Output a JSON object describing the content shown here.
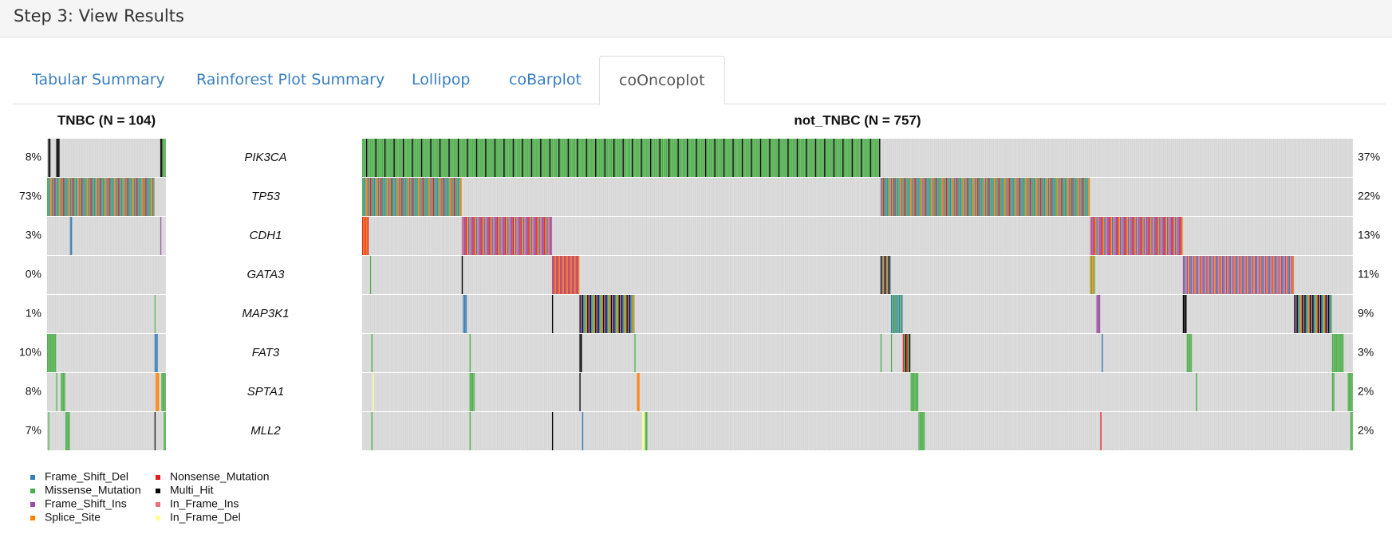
{
  "header": {
    "title": "Step 3: View Results"
  },
  "tabs": [
    {
      "label": "Tabular Summary",
      "active": false
    },
    {
      "label": "Rainforest Plot Summary",
      "active": false
    },
    {
      "label": "Lollipop",
      "active": false
    },
    {
      "label": "coBarplot",
      "active": false
    },
    {
      "label": "coOncoplot",
      "active": true
    }
  ],
  "oncoplot": {
    "genes": [
      "PIK3CA",
      "TP53",
      "CDH1",
      "GATA3",
      "MAP3K1",
      "FAT3",
      "SPTA1",
      "MLL2"
    ],
    "panels": [
      {
        "title": "TNBC (N = 104)",
        "samples": 104,
        "percent_labels": [
          "8%",
          "73%",
          "3%",
          "0%",
          "1%",
          "10%",
          "8%",
          "7%"
        ],
        "rows": [
          [
            {
              "from": 1,
              "to": 3,
              "colors": [
                "#000000"
              ]
            },
            {
              "from": 8,
              "to": 11,
              "colors": [
                "#000000"
              ]
            },
            {
              "from": 99,
              "to": 101,
              "colors": [
                "#000000"
              ]
            },
            {
              "from": 101,
              "to": 104,
              "colors": [
                "#4daf4a"
              ]
            }
          ],
          [
            {
              "from": 0,
              "to": 94,
              "colors": [
                "#4daf4a",
                "#377eb8",
                "#4daf4a",
                "#ff7f00",
                "#984ea3",
                "#4daf4a",
                "#e41a1c",
                "#377eb8"
              ]
            }
          ],
          [
            {
              "from": 20,
              "to": 22,
              "colors": [
                "#377eb8"
              ]
            },
            {
              "from": 99,
              "to": 100,
              "colors": [
                "#984ea3"
              ]
            }
          ],
          [],
          [
            {
              "from": 94,
              "to": 95,
              "colors": [
                "#4daf4a"
              ]
            }
          ],
          [
            {
              "from": 0,
              "to": 8,
              "colors": [
                "#4daf4a"
              ]
            },
            {
              "from": 94,
              "to": 97,
              "colors": [
                "#377eb8"
              ]
            }
          ],
          [
            {
              "from": 8,
              "to": 9,
              "colors": [
                "#4daf4a"
              ]
            },
            {
              "from": 12,
              "to": 16,
              "colors": [
                "#4daf4a"
              ]
            },
            {
              "from": 95,
              "to": 98,
              "colors": [
                "#ff7f00"
              ]
            },
            {
              "from": 100,
              "to": 104,
              "colors": [
                "#4daf4a"
              ]
            }
          ],
          [
            {
              "from": 1,
              "to": 2,
              "colors": [
                "#4daf4a"
              ]
            },
            {
              "from": 16,
              "to": 20,
              "colors": [
                "#4daf4a"
              ]
            },
            {
              "from": 94,
              "to": 95,
              "colors": [
                "#000000"
              ]
            },
            {
              "from": 102,
              "to": 104,
              "colors": [
                "#4daf4a"
              ]
            }
          ]
        ]
      },
      {
        "title": "not_TNBC (N = 757)",
        "samples": 757,
        "percent_labels": [
          "37%",
          "22%",
          "13%",
          "11%",
          "9%",
          "3%",
          "2%",
          "2%"
        ],
        "rows": [
          [
            {
              "from": 0,
              "to": 396,
              "colors": [
                "#4daf4a",
                "#4daf4a",
                "#4daf4a",
                "#000000",
                "#4daf4a",
                "#4daf4a",
                "#4daf4a"
              ]
            }
          ],
          [
            {
              "from": 0,
              "to": 76,
              "colors": [
                "#4daf4a",
                "#377eb8",
                "#4daf4a",
                "#ff7f00",
                "#984ea3",
                "#4daf4a",
                "#e41a1c",
                "#377eb8"
              ]
            },
            {
              "from": 396,
              "to": 556,
              "colors": [
                "#4daf4a",
                "#377eb8",
                "#4daf4a",
                "#ff7f00",
                "#984ea3",
                "#4daf4a",
                "#e41a1c",
                "#377eb8"
              ]
            }
          ],
          [
            {
              "from": 0,
              "to": 5,
              "colors": [
                "#e41a1c",
                "#ff7f00"
              ]
            },
            {
              "from": 76,
              "to": 145,
              "colors": [
                "#984ea3",
                "#e41a1c",
                "#ff7f00",
                "#377eb8",
                "#e7717d",
                "#984ea3"
              ]
            },
            {
              "from": 556,
              "to": 627,
              "colors": [
                "#984ea3",
                "#e41a1c",
                "#ff7f00",
                "#377eb8",
                "#e7717d",
                "#984ea3"
              ]
            }
          ],
          [
            {
              "from": 6,
              "to": 7,
              "colors": [
                "#4daf4a"
              ]
            },
            {
              "from": 76,
              "to": 77,
              "colors": [
                "#000000"
              ]
            },
            {
              "from": 145,
              "to": 166,
              "colors": [
                "#ff7f00",
                "#984ea3",
                "#e41a1c"
              ]
            },
            {
              "from": 396,
              "to": 404,
              "colors": [
                "#000000",
                "#377eb8",
                "#ff7f00"
              ]
            },
            {
              "from": 556,
              "to": 560,
              "colors": [
                "#ff7f00",
                "#4daf4a"
              ]
            },
            {
              "from": 627,
              "to": 712,
              "colors": [
                "#984ea3",
                "#ff7f00",
                "#984ea3",
                "#377eb8",
                "#e7717d"
              ]
            }
          ],
          [
            {
              "from": 77,
              "to": 80,
              "colors": [
                "#377eb8"
              ]
            },
            {
              "from": 145,
              "to": 146,
              "colors": [
                "#000000"
              ]
            },
            {
              "from": 166,
              "to": 208,
              "colors": [
                "#000000",
                "#377eb8",
                "#4daf4a",
                "#ff7f00",
                "#000000",
                "#984ea3"
              ]
            },
            {
              "from": 404,
              "to": 413,
              "colors": [
                "#377eb8",
                "#4daf4a"
              ]
            },
            {
              "from": 561,
              "to": 564,
              "colors": [
                "#984ea3"
              ]
            },
            {
              "from": 627,
              "to": 630,
              "colors": [
                "#000000"
              ]
            },
            {
              "from": 712,
              "to": 741,
              "colors": [
                "#000000",
                "#377eb8",
                "#4daf4a",
                "#ff7f00",
                "#000000",
                "#984ea3"
              ]
            }
          ],
          [
            {
              "from": 7,
              "to": 8,
              "colors": [
                "#4daf4a"
              ]
            },
            {
              "from": 82,
              "to": 83,
              "colors": [
                "#4daf4a"
              ]
            },
            {
              "from": 166,
              "to": 168,
              "colors": [
                "#000000"
              ]
            },
            {
              "from": 208,
              "to": 209,
              "colors": [
                "#4daf4a"
              ]
            },
            {
              "from": 396,
              "to": 397,
              "colors": [
                "#4daf4a"
              ]
            },
            {
              "from": 404,
              "to": 405,
              "colors": [
                "#4daf4a"
              ]
            },
            {
              "from": 413,
              "to": 419,
              "colors": [
                "#4daf4a",
                "#000000",
                "#e41a1c"
              ]
            },
            {
              "from": 565,
              "to": 566,
              "colors": [
                "#377eb8"
              ]
            },
            {
              "from": 630,
              "to": 634,
              "colors": [
                "#4daf4a"
              ]
            },
            {
              "from": 741,
              "to": 750,
              "colors": [
                "#4daf4a"
              ]
            }
          ],
          [
            {
              "from": 8,
              "to": 9,
              "colors": [
                "#ffff99"
              ]
            },
            {
              "from": 82,
              "to": 86,
              "colors": [
                "#4daf4a"
              ]
            },
            {
              "from": 166,
              "to": 167,
              "colors": [
                "#000000"
              ]
            },
            {
              "from": 210,
              "to": 212,
              "colors": [
                "#ff7f00"
              ]
            },
            {
              "from": 419,
              "to": 425,
              "colors": [
                "#4daf4a"
              ]
            },
            {
              "from": 637,
              "to": 638,
              "colors": [
                "#4daf4a"
              ]
            },
            {
              "from": 741,
              "to": 743,
              "colors": [
                "#4daf4a"
              ]
            },
            {
              "from": 753,
              "to": 757,
              "colors": [
                "#4daf4a"
              ]
            }
          ],
          [
            {
              "from": 7,
              "to": 8,
              "colors": [
                "#4daf4a"
              ]
            },
            {
              "from": 82,
              "to": 83,
              "colors": [
                "#4daf4a"
              ]
            },
            {
              "from": 145,
              "to": 146,
              "colors": [
                "#000000"
              ]
            },
            {
              "from": 168,
              "to": 169,
              "colors": [
                "#377eb8"
              ]
            },
            {
              "from": 214,
              "to": 216,
              "colors": [
                "#ffff99"
              ]
            },
            {
              "from": 216,
              "to": 218,
              "colors": [
                "#4daf4a"
              ]
            },
            {
              "from": 425,
              "to": 430,
              "colors": [
                "#4daf4a"
              ]
            },
            {
              "from": 564,
              "to": 565,
              "colors": [
                "#e41a1c"
              ]
            },
            {
              "from": 755,
              "to": 757,
              "colors": [
                "#4daf4a"
              ]
            }
          ]
        ]
      }
    ],
    "legend": [
      {
        "label": "Frame_Shift_Del",
        "color": "#377eb8"
      },
      {
        "label": "Missense_Mutation",
        "color": "#4daf4a"
      },
      {
        "label": "Frame_Shift_Ins",
        "color": "#984ea3"
      },
      {
        "label": "Splice_Site",
        "color": "#ff7f00"
      },
      {
        "label": "Nonsense_Mutation",
        "color": "#e41a1c"
      },
      {
        "label": "Multi_Hit",
        "color": "#000000"
      },
      {
        "label": "In_Frame_Ins",
        "color": "#e7717d"
      },
      {
        "label": "In_Frame_Del",
        "color": "#ffff99"
      }
    ]
  }
}
